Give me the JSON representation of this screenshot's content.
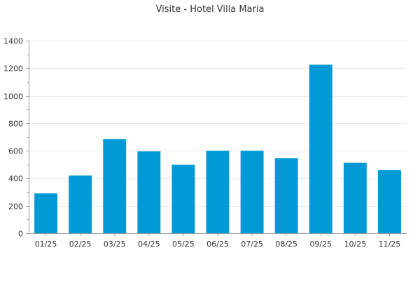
{
  "chart_data": {
    "type": "bar",
    "title": "Visite - Hotel Villa Maria",
    "xlabel": "",
    "ylabel": "",
    "categories": [
      "01/25",
      "02/25",
      "03/25",
      "04/25",
      "05/25",
      "06/25",
      "07/25",
      "08/25",
      "09/25",
      "10/25",
      "11/25"
    ],
    "series": [
      {
        "values": [
          290,
          420,
          685,
          595,
          498,
          600,
          600,
          545,
          1225,
          512,
          458
        ]
      }
    ],
    "ylim": [
      0,
      1400
    ],
    "yticks": [
      0,
      200,
      400,
      600,
      800,
      1000,
      1200,
      1400
    ],
    "grid": true,
    "legend": "none",
    "colors": {
      "bar": "#0099d6",
      "grid": "#e6e6e6",
      "axis": "#999999"
    }
  }
}
